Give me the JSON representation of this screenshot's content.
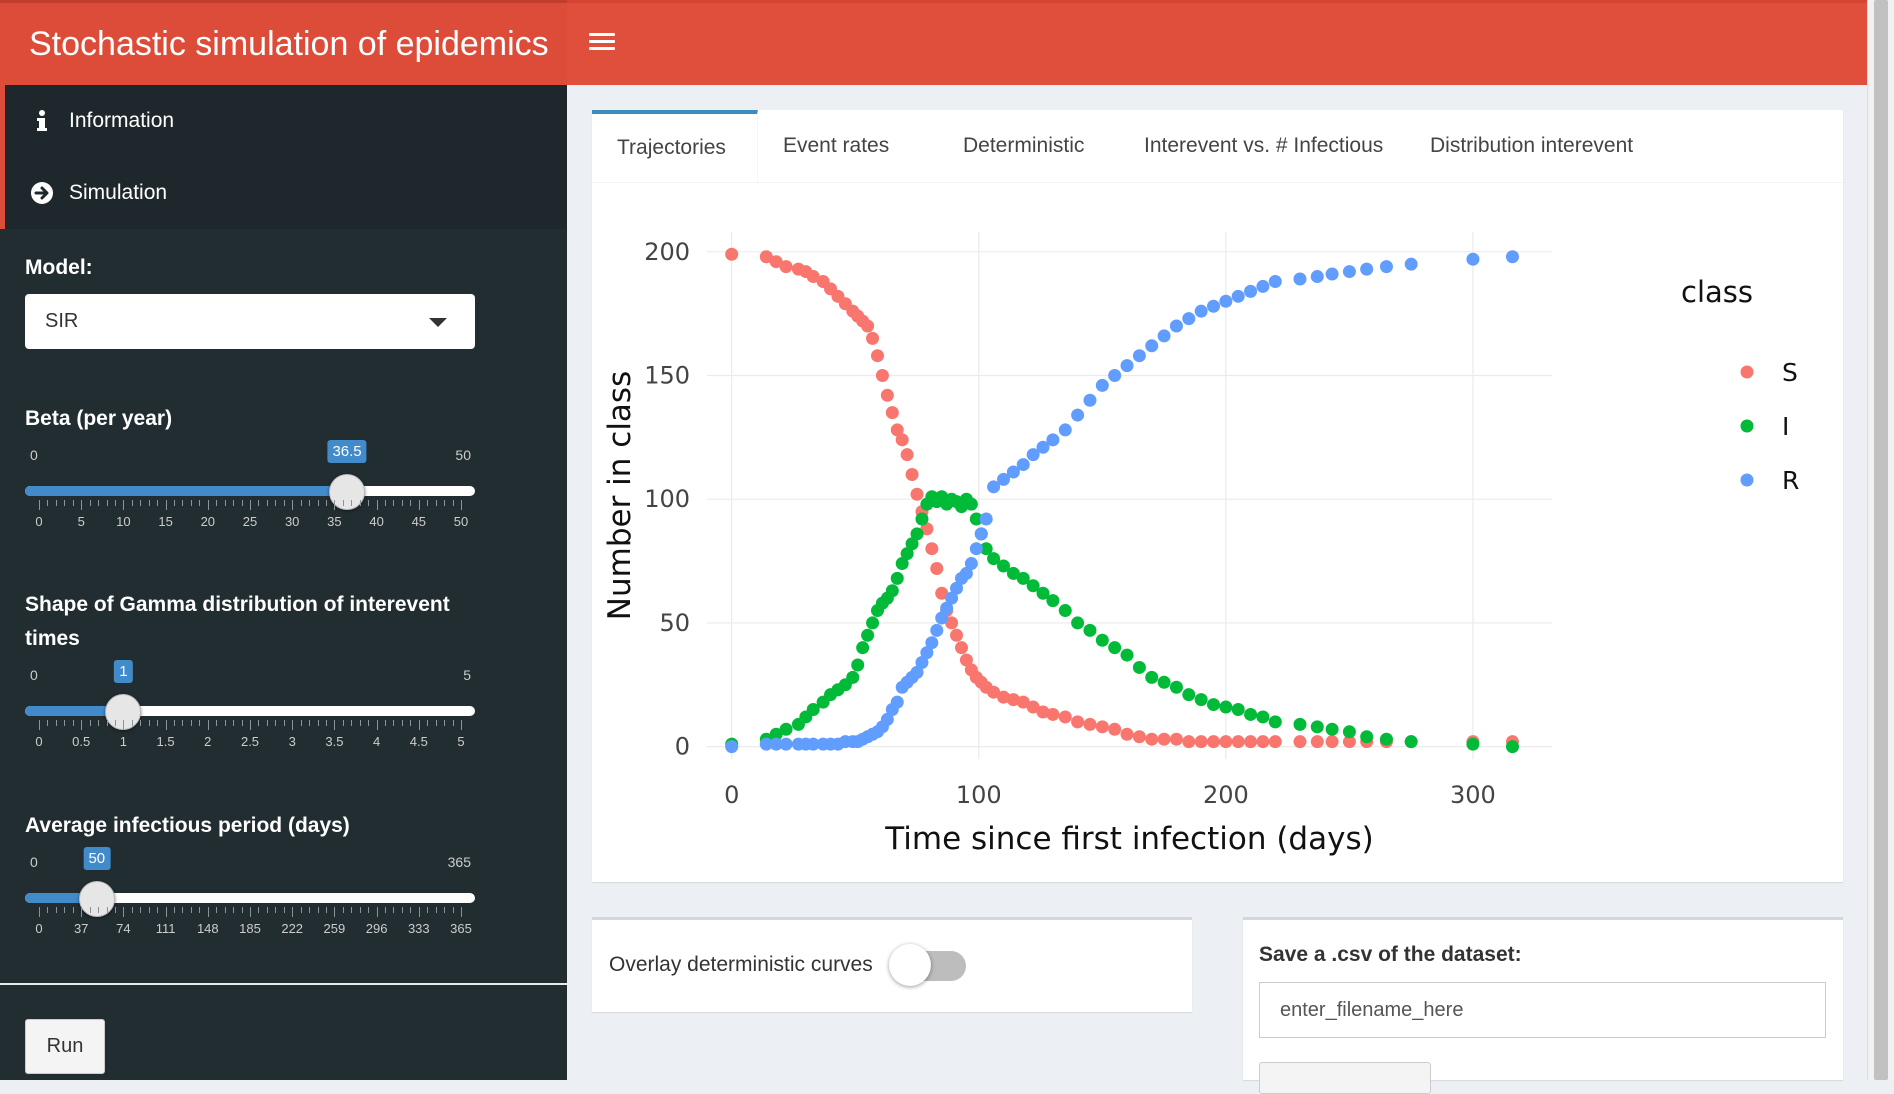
{
  "app": {
    "title": "Stochastic simulation of epidemics"
  },
  "sidebar": {
    "menu": [
      {
        "label": "Information",
        "icon": "info-icon"
      },
      {
        "label": "Simulation",
        "icon": "arrow-circle-right-icon"
      }
    ],
    "model": {
      "label": "Model:",
      "selected": "SIR"
    },
    "beta": {
      "label": "Beta (per year)",
      "min": "0",
      "max": "50",
      "value": "36.5",
      "fraction": 0.73,
      "ticks": [
        "0",
        "5",
        "10",
        "15",
        "20",
        "25",
        "30",
        "35",
        "40",
        "45",
        "50"
      ]
    },
    "shape": {
      "label_line1": "Shape of Gamma distribution of interevent",
      "label_line2": "times",
      "min": "0",
      "max": "5",
      "value": "1",
      "fraction": 0.2,
      "ticks": [
        "0",
        "0.5",
        "1",
        "1.5",
        "2",
        "2.5",
        "3",
        "3.5",
        "4",
        "4.5",
        "5"
      ]
    },
    "period": {
      "label": "Average infectious period (days)",
      "min": "0",
      "max": "365",
      "value": "50",
      "fraction": 0.137,
      "ticks": [
        "0",
        "37",
        "74",
        "111",
        "148",
        "185",
        "222",
        "259",
        "296",
        "333",
        "365"
      ]
    },
    "run_label": "Run"
  },
  "tabs": [
    "Trajectories",
    "Event rates",
    "Deterministic",
    "Interevent vs. # Infectious",
    "Distribution interevent"
  ],
  "overlay": {
    "label": "Overlay deterministic curves"
  },
  "save": {
    "label": "Save a .csv of the dataset:",
    "filename": "enter_filename_here"
  },
  "colors": {
    "S": "#f8766d",
    "I": "#00ba38",
    "R": "#619cff",
    "header": "#dd4b39",
    "sidebar": "#222d32",
    "accent": "#428bca"
  },
  "chart_data": {
    "type": "scatter",
    "title": "",
    "xlabel": "Time since first infection (days)",
    "ylabel": "Number in class",
    "xlim": [
      -10,
      332
    ],
    "ylim": [
      -5,
      208
    ],
    "xticks": [
      0,
      100,
      200,
      300
    ],
    "yticks": [
      0,
      50,
      100,
      150,
      200
    ],
    "legend_title": "class",
    "legend_position": "right",
    "series": [
      {
        "name": "S",
        "color": "#f8766d",
        "points": [
          [
            0,
            199
          ],
          [
            14,
            198
          ],
          [
            18,
            196
          ],
          [
            22,
            194
          ],
          [
            27,
            193
          ],
          [
            30,
            192
          ],
          [
            33,
            190
          ],
          [
            37,
            188
          ],
          [
            40,
            185
          ],
          [
            43,
            182
          ],
          [
            46,
            179
          ],
          [
            49,
            176
          ],
          [
            51,
            174
          ],
          [
            53,
            172
          ],
          [
            55,
            170
          ],
          [
            57,
            165
          ],
          [
            59,
            158
          ],
          [
            61,
            150
          ],
          [
            63,
            142
          ],
          [
            65,
            135
          ],
          [
            67,
            128
          ],
          [
            69,
            124
          ],
          [
            71,
            118
          ],
          [
            73,
            110
          ],
          [
            75,
            102
          ],
          [
            77,
            95
          ],
          [
            79,
            88
          ],
          [
            81,
            80
          ],
          [
            83,
            72
          ],
          [
            85,
            62
          ],
          [
            87,
            55
          ],
          [
            89,
            50
          ],
          [
            91,
            45
          ],
          [
            93,
            40
          ],
          [
            95,
            35
          ],
          [
            97,
            31
          ],
          [
            99,
            28
          ],
          [
            101,
            26
          ],
          [
            103,
            24
          ],
          [
            106,
            22
          ],
          [
            110,
            20
          ],
          [
            114,
            19
          ],
          [
            118,
            18
          ],
          [
            122,
            16
          ],
          [
            126,
            14
          ],
          [
            130,
            13
          ],
          [
            135,
            12
          ],
          [
            140,
            10
          ],
          [
            145,
            9
          ],
          [
            150,
            8
          ],
          [
            155,
            7
          ],
          [
            160,
            5
          ],
          [
            165,
            4
          ],
          [
            170,
            3
          ],
          [
            175,
            3
          ],
          [
            180,
            3
          ],
          [
            185,
            2
          ],
          [
            190,
            2
          ],
          [
            195,
            2
          ],
          [
            200,
            2
          ],
          [
            205,
            2
          ],
          [
            210,
            2
          ],
          [
            215,
            2
          ],
          [
            220,
            2
          ],
          [
            230,
            2
          ],
          [
            237,
            2
          ],
          [
            243,
            2
          ],
          [
            250,
            2
          ],
          [
            257,
            2
          ],
          [
            265,
            2
          ],
          [
            275,
            2
          ],
          [
            300,
            2
          ],
          [
            316,
            2
          ]
        ]
      },
      {
        "name": "I",
        "color": "#00ba38",
        "points": [
          [
            0,
            1
          ],
          [
            14,
            3
          ],
          [
            18,
            5
          ],
          [
            22,
            7
          ],
          [
            27,
            9
          ],
          [
            30,
            12
          ],
          [
            33,
            15
          ],
          [
            37,
            18
          ],
          [
            40,
            21
          ],
          [
            43,
            23
          ],
          [
            46,
            25
          ],
          [
            49,
            28
          ],
          [
            51,
            33
          ],
          [
            53,
            40
          ],
          [
            55,
            45
          ],
          [
            57,
            50
          ],
          [
            59,
            55
          ],
          [
            61,
            58
          ],
          [
            63,
            60
          ],
          [
            65,
            63
          ],
          [
            67,
            68
          ],
          [
            69,
            74
          ],
          [
            71,
            78
          ],
          [
            73,
            82
          ],
          [
            75,
            86
          ],
          [
            77,
            92
          ],
          [
            79,
            98
          ],
          [
            81,
            101
          ],
          [
            83,
            99
          ],
          [
            85,
            101
          ],
          [
            87,
            98
          ],
          [
            89,
            100
          ],
          [
            91,
            99
          ],
          [
            93,
            97
          ],
          [
            95,
            100
          ],
          [
            97,
            98
          ],
          [
            99,
            92
          ],
          [
            101,
            86
          ],
          [
            103,
            80
          ],
          [
            106,
            76
          ],
          [
            110,
            73
          ],
          [
            114,
            70
          ],
          [
            118,
            68
          ],
          [
            122,
            65
          ],
          [
            126,
            62
          ],
          [
            130,
            59
          ],
          [
            135,
            55
          ],
          [
            140,
            50
          ],
          [
            145,
            47
          ],
          [
            150,
            43
          ],
          [
            155,
            40
          ],
          [
            160,
            37
          ],
          [
            165,
            32
          ],
          [
            170,
            28
          ],
          [
            175,
            26
          ],
          [
            180,
            24
          ],
          [
            185,
            21
          ],
          [
            190,
            19
          ],
          [
            195,
            17
          ],
          [
            200,
            16
          ],
          [
            205,
            15
          ],
          [
            210,
            13
          ],
          [
            215,
            12
          ],
          [
            220,
            10
          ],
          [
            230,
            9
          ],
          [
            237,
            8
          ],
          [
            243,
            7
          ],
          [
            250,
            6
          ],
          [
            257,
            4
          ],
          [
            265,
            3
          ],
          [
            275,
            2
          ],
          [
            300,
            1
          ],
          [
            316,
            0
          ]
        ]
      },
      {
        "name": "R",
        "color": "#619cff",
        "points": [
          [
            0,
            0
          ],
          [
            14,
            1
          ],
          [
            18,
            1
          ],
          [
            22,
            1
          ],
          [
            27,
            1
          ],
          [
            30,
            1
          ],
          [
            33,
            1
          ],
          [
            37,
            1
          ],
          [
            40,
            1
          ],
          [
            43,
            1
          ],
          [
            46,
            2
          ],
          [
            49,
            2
          ],
          [
            51,
            2
          ],
          [
            53,
            3
          ],
          [
            55,
            4
          ],
          [
            57,
            5
          ],
          [
            59,
            6
          ],
          [
            61,
            8
          ],
          [
            63,
            11
          ],
          [
            65,
            15
          ],
          [
            67,
            18
          ],
          [
            69,
            24
          ],
          [
            71,
            26
          ],
          [
            73,
            28
          ],
          [
            75,
            30
          ],
          [
            77,
            34
          ],
          [
            79,
            38
          ],
          [
            81,
            42
          ],
          [
            83,
            47
          ],
          [
            85,
            52
          ],
          [
            87,
            56
          ],
          [
            89,
            60
          ],
          [
            91,
            64
          ],
          [
            93,
            68
          ],
          [
            95,
            70
          ],
          [
            97,
            74
          ],
          [
            99,
            80
          ],
          [
            101,
            86
          ],
          [
            103,
            92
          ],
          [
            106,
            105
          ],
          [
            110,
            108
          ],
          [
            114,
            111
          ],
          [
            118,
            114
          ],
          [
            122,
            118
          ],
          [
            126,
            121
          ],
          [
            130,
            124
          ],
          [
            135,
            128
          ],
          [
            140,
            134
          ],
          [
            145,
            140
          ],
          [
            150,
            146
          ],
          [
            155,
            150
          ],
          [
            160,
            154
          ],
          [
            165,
            158
          ],
          [
            170,
            162
          ],
          [
            175,
            166
          ],
          [
            180,
            170
          ],
          [
            185,
            173
          ],
          [
            190,
            176
          ],
          [
            195,
            178
          ],
          [
            200,
            180
          ],
          [
            205,
            182
          ],
          [
            210,
            184
          ],
          [
            215,
            186
          ],
          [
            220,
            188
          ],
          [
            230,
            189
          ],
          [
            237,
            190
          ],
          [
            243,
            191
          ],
          [
            250,
            192
          ],
          [
            257,
            193
          ],
          [
            265,
            194
          ],
          [
            275,
            195
          ],
          [
            300,
            197
          ],
          [
            316,
            198
          ]
        ]
      }
    ]
  }
}
